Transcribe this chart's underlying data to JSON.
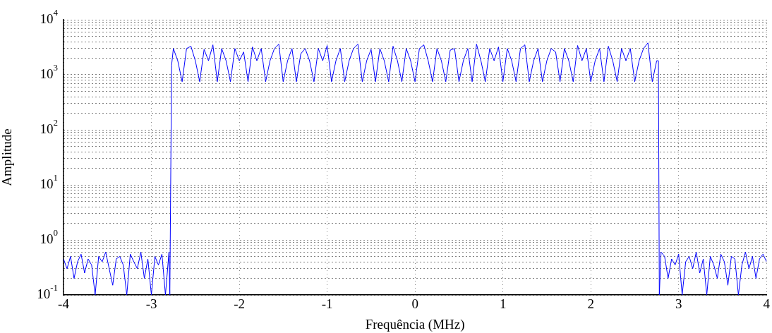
{
  "chart_data": {
    "type": "line",
    "xlabel": "Frequência (MHz)",
    "ylabel": "Amplitude",
    "log": "y",
    "grid": true,
    "color": "#0000ff",
    "xlim": [
      -4,
      4
    ],
    "xticks": [
      -4,
      -3,
      -2,
      -1,
      0,
      1,
      2,
      3,
      4
    ],
    "ylim": [
      0.1,
      10000
    ],
    "yticks": [
      {
        "value": 0.1,
        "label": "10$^{-1}$"
      },
      {
        "value": 0.2,
        "label": null
      },
      {
        "value": 0.3,
        "label": null
      },
      {
        "value": 0.4,
        "label": null
      },
      {
        "value": 0.5,
        "label": null
      },
      {
        "value": 0.6,
        "label": null
      },
      {
        "value": 0.7,
        "label": null
      },
      {
        "value": 0.8,
        "label": null
      },
      {
        "value": 0.9,
        "label": null
      },
      {
        "value": 1,
        "label": "10$^{0}$"
      },
      {
        "value": 2,
        "label": null
      },
      {
        "value": 3,
        "label": null
      },
      {
        "value": 4,
        "label": null
      },
      {
        "value": 5,
        "label": null
      },
      {
        "value": 6,
        "label": null
      },
      {
        "value": 7,
        "label": null
      },
      {
        "value": 8,
        "label": null
      },
      {
        "value": 9,
        "label": null
      },
      {
        "value": 10,
        "label": "10$^{1}$"
      },
      {
        "value": 20,
        "label": null
      },
      {
        "value": 30,
        "label": null
      },
      {
        "value": 40,
        "label": null
      },
      {
        "value": 50,
        "label": null
      },
      {
        "value": 60,
        "label": null
      },
      {
        "value": 70,
        "label": null
      },
      {
        "value": 80,
        "label": null
      },
      {
        "value": 90,
        "label": null
      },
      {
        "value": 100,
        "label": "10$^{2}$"
      },
      {
        "value": 200,
        "label": null
      },
      {
        "value": 300,
        "label": null
      },
      {
        "value": 400,
        "label": null
      },
      {
        "value": 500,
        "label": null
      },
      {
        "value": 600,
        "label": null
      },
      {
        "value": 700,
        "label": null
      },
      {
        "value": 800,
        "label": null
      },
      {
        "value": 900,
        "label": null
      },
      {
        "value": 1000,
        "label": "10$^{3}$"
      },
      {
        "value": 2000,
        "label": null
      },
      {
        "value": 3000,
        "label": null
      },
      {
        "value": 4000,
        "label": null
      },
      {
        "value": 5000,
        "label": null
      },
      {
        "value": 6000,
        "label": null
      },
      {
        "value": 7000,
        "label": null
      },
      {
        "value": 8000,
        "label": null
      },
      {
        "value": 9000,
        "label": null
      },
      {
        "value": 10000,
        "label": "10$^{4}$"
      }
    ],
    "x": [
      -4.0,
      -3.96,
      -3.92,
      -3.88,
      -3.84,
      -3.8,
      -3.76,
      -3.72,
      -3.68,
      -3.64,
      -3.6,
      -3.56,
      -3.52,
      -3.48,
      -3.44,
      -3.4,
      -3.36,
      -3.32,
      -3.28,
      -3.24,
      -3.2,
      -3.16,
      -3.12,
      -3.08,
      -3.04,
      -3.0,
      -2.96,
      -2.92,
      -2.88,
      -2.84,
      -2.8,
      -2.79,
      -2.77,
      -2.75,
      -2.7,
      -2.65,
      -2.6,
      -2.55,
      -2.5,
      -2.45,
      -2.4,
      -2.35,
      -2.3,
      -2.25,
      -2.2,
      -2.15,
      -2.1,
      -2.05,
      -2.0,
      -1.95,
      -1.9,
      -1.85,
      -1.8,
      -1.75,
      -1.7,
      -1.65,
      -1.6,
      -1.55,
      -1.5,
      -1.45,
      -1.4,
      -1.35,
      -1.3,
      -1.25,
      -1.2,
      -1.15,
      -1.1,
      -1.05,
      -1.0,
      -0.95,
      -0.9,
      -0.85,
      -0.8,
      -0.75,
      -0.7,
      -0.65,
      -0.6,
      -0.55,
      -0.5,
      -0.45,
      -0.4,
      -0.35,
      -0.3,
      -0.25,
      -0.2,
      -0.15,
      -0.1,
      -0.05,
      0.0,
      0.05,
      0.1,
      0.15,
      0.2,
      0.25,
      0.3,
      0.35,
      0.4,
      0.45,
      0.5,
      0.55,
      0.6,
      0.65,
      0.7,
      0.75,
      0.8,
      0.85,
      0.9,
      0.95,
      1.0,
      1.05,
      1.1,
      1.15,
      1.2,
      1.25,
      1.3,
      1.35,
      1.4,
      1.45,
      1.5,
      1.55,
      1.6,
      1.65,
      1.7,
      1.75,
      1.8,
      1.85,
      1.9,
      1.95,
      2.0,
      2.05,
      2.1,
      2.15,
      2.2,
      2.25,
      2.3,
      2.35,
      2.4,
      2.45,
      2.5,
      2.55,
      2.6,
      2.65,
      2.7,
      2.75,
      2.77,
      2.78,
      2.8,
      2.84,
      2.88,
      2.92,
      2.96,
      3.0,
      3.04,
      3.08,
      3.12,
      3.16,
      3.2,
      3.24,
      3.28,
      3.32,
      3.36,
      3.4,
      3.44,
      3.48,
      3.52,
      3.56,
      3.6,
      3.64,
      3.68,
      3.72,
      3.76,
      3.8,
      3.84,
      3.88,
      3.92,
      3.96,
      4.0
    ],
    "values": [
      0.45,
      0.3,
      0.5,
      0.2,
      0.4,
      0.55,
      0.25,
      0.45,
      0.35,
      0.1,
      0.5,
      0.4,
      0.6,
      0.3,
      0.15,
      0.45,
      0.5,
      0.35,
      0.1,
      0.55,
      0.4,
      0.3,
      0.6,
      0.2,
      0.45,
      0.1,
      0.5,
      0.35,
      0.55,
      0.1,
      0.6,
      0.1,
      1500,
      3000,
      1800,
      750,
      3000,
      3300,
      1800,
      750,
      2900,
      1800,
      3500,
      750,
      3000,
      1800,
      750,
      3000,
      1800,
      2600,
      750,
      3200,
      1800,
      3000,
      750,
      1800,
      3000,
      3600,
      750,
      1800,
      3000,
      750,
      2400,
      3000,
      1800,
      750,
      3000,
      1800,
      3400,
      750,
      1800,
      3000,
      750,
      1800,
      3000,
      3600,
      750,
      1800,
      2900,
      750,
      3000,
      1800,
      750,
      3300,
      1800,
      750,
      3000,
      1800,
      750,
      3000,
      3500,
      1800,
      750,
      3000,
      1800,
      750,
      2800,
      3000,
      750,
      1800,
      3000,
      750,
      3600,
      1800,
      750,
      3000,
      1800,
      3200,
      750,
      3000,
      1800,
      750,
      3000,
      3500,
      750,
      1800,
      3000,
      750,
      1800,
      3000,
      2600,
      750,
      3000,
      1800,
      750,
      3400,
      1800,
      3000,
      750,
      1800,
      3000,
      750,
      3300,
      1800,
      750,
      3000,
      1800,
      3000,
      750,
      1800,
      3000,
      3800,
      750,
      1800,
      1800,
      0.1,
      0.6,
      0.5,
      0.2,
      0.45,
      0.35,
      0.55,
      0.1,
      0.4,
      0.5,
      0.3,
      0.6,
      0.25,
      0.45,
      0.1,
      0.5,
      0.35,
      0.2,
      0.55,
      0.4,
      0.15,
      0.5,
      0.45,
      0.1,
      0.35,
      0.6,
      0.3,
      0.5,
      0.2,
      0.45,
      0.55,
      0.4
    ]
  }
}
